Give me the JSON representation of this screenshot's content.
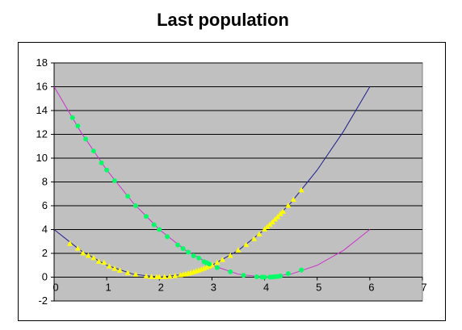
{
  "chart_data": {
    "type": "scatter",
    "title": "Last population",
    "xlabel": "",
    "ylabel": "",
    "xlim": [
      0,
      7
    ],
    "ylim": [
      -2,
      18
    ],
    "xticks": [
      "0",
      "1",
      "2",
      "3",
      "4",
      "5",
      "6",
      "7"
    ],
    "yticks": [
      "-2",
      "0",
      "2",
      "4",
      "6",
      "8",
      "10",
      "12",
      "14",
      "16",
      "18"
    ],
    "plot_background": "#c0c0c0",
    "gridlines": "horizontal",
    "legend": "none",
    "series": [
      {
        "kind": "line",
        "color": "#1e1e8c",
        "formula": "(x-2)^2",
        "x": [
          0,
          0.5,
          1,
          1.5,
          2,
          2.5,
          3,
          3.5,
          4,
          4.5,
          5,
          5.5,
          6
        ],
        "values": [
          4,
          2.25,
          1,
          0.25,
          0,
          0.25,
          1,
          2.25,
          4,
          6.25,
          9,
          12.25,
          16
        ]
      },
      {
        "kind": "line",
        "color": "#cc33cc",
        "formula": "(x-4)^2",
        "x": [
          0,
          0.5,
          1,
          1.5,
          2,
          2.5,
          3,
          3.5,
          4,
          4.5,
          5,
          5.5,
          6
        ],
        "values": [
          16,
          12.25,
          9,
          6.25,
          4,
          2.25,
          1,
          0.25,
          0,
          0.25,
          1,
          2.25,
          4
        ]
      },
      {
        "kind": "scatter",
        "marker": "triangle",
        "color": "#ffff00",
        "x": [
          0.3,
          0.45,
          0.55,
          0.65,
          0.75,
          0.85,
          0.95,
          1.05,
          1.15,
          1.25,
          1.4,
          1.55,
          1.75,
          1.85,
          1.95,
          2.0,
          2.1,
          2.2,
          2.3,
          2.4,
          2.45,
          2.5,
          2.55,
          2.6,
          2.65,
          2.7,
          2.75,
          2.8,
          2.85,
          2.9,
          2.95,
          3.0,
          3.1,
          3.2,
          3.35,
          3.5,
          3.65,
          3.8,
          3.9,
          4.0,
          4.05,
          4.1,
          4.15,
          4.2,
          4.25,
          4.3,
          4.35,
          4.45,
          4.55,
          4.7
        ],
        "values": [
          2.8,
          2.4,
          2.0,
          1.8,
          1.6,
          1.3,
          1.2,
          0.9,
          0.7,
          0.55,
          0.35,
          0.2,
          0.06,
          0.02,
          0.0,
          0.0,
          0.01,
          0.04,
          0.09,
          0.16,
          0.2,
          0.25,
          0.3,
          0.36,
          0.42,
          0.49,
          0.56,
          0.64,
          0.72,
          0.81,
          0.9,
          1.0,
          1.2,
          1.45,
          1.8,
          2.25,
          2.7,
          3.2,
          3.6,
          4.0,
          4.2,
          4.4,
          4.6,
          4.85,
          5.05,
          5.3,
          5.5,
          6.0,
          6.5,
          7.3
        ]
      },
      {
        "kind": "scatter",
        "marker": "circle",
        "color": "#00ff66",
        "x": [
          0.35,
          0.45,
          0.6,
          0.75,
          0.9,
          1.0,
          1.15,
          1.4,
          1.55,
          1.75,
          1.9,
          2.0,
          2.15,
          2.35,
          2.45,
          2.55,
          2.65,
          2.75,
          2.85,
          2.9,
          2.95,
          3.1,
          3.35,
          3.6,
          3.85,
          3.95,
          4.0,
          4.1,
          4.15,
          4.2,
          4.25,
          4.3,
          4.45,
          4.7
        ],
        "values": [
          13.4,
          12.7,
          11.6,
          10.6,
          9.6,
          9.0,
          8.1,
          6.8,
          6.0,
          5.1,
          4.4,
          4.0,
          3.4,
          2.7,
          2.4,
          2.1,
          1.8,
          1.6,
          1.3,
          1.2,
          1.1,
          0.8,
          0.45,
          0.15,
          0.03,
          0.01,
          0.0,
          0.01,
          0.02,
          0.04,
          0.06,
          0.1,
          0.3,
          0.6
        ]
      }
    ]
  }
}
